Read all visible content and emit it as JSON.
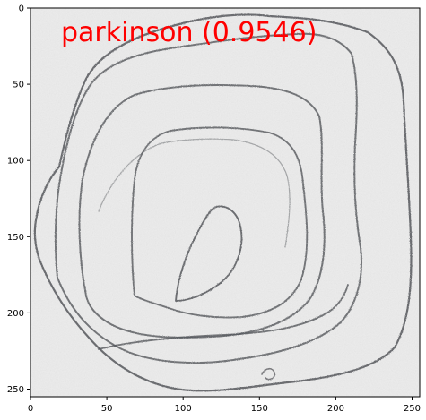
{
  "image_panel": {
    "prediction_label": "parkinson (0.9546)",
    "prediction_color": "#ff0000",
    "x_ticks": [
      "0",
      "50",
      "100",
      "150",
      "200",
      "250"
    ],
    "y_ticks": [
      "0",
      "50",
      "100",
      "150",
      "200",
      "250"
    ],
    "x_range": [
      0,
      255
    ],
    "y_range": [
      0,
      255
    ],
    "x_tick_values": [
      0,
      50,
      100,
      150,
      200,
      250
    ],
    "y_tick_values": [
      0,
      50,
      100,
      150,
      200,
      250
    ],
    "content": "pencil-spiral-drawing",
    "paper_color": "#ececec",
    "stroke_color": "#55575c"
  }
}
